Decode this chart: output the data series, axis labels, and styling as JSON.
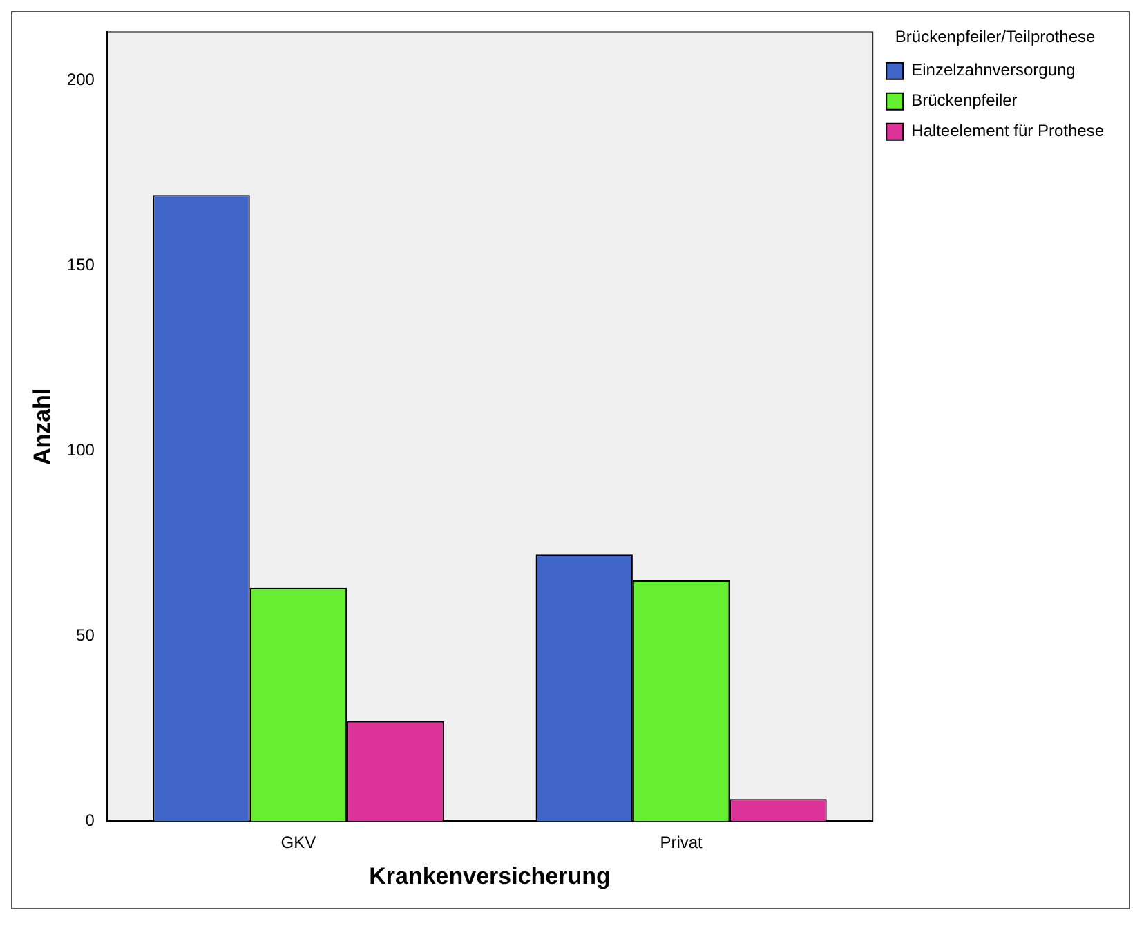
{
  "chart_data": {
    "type": "bar",
    "xlabel": "Krankenversicherung",
    "ylabel": "Anzahl",
    "legend_title": "Brückenpfeiler/Teilprothese",
    "categories": [
      "GKV",
      "Privat"
    ],
    "series": [
      {
        "name": "Einzelzahnversorgung",
        "color": "#3f66c8",
        "values": [
          169,
          72
        ]
      },
      {
        "name": "Brückenpfeiler",
        "color": "#66ee33",
        "values": [
          63,
          65
        ]
      },
      {
        "name": "Halteelement für Prothese",
        "color": "#dd3399",
        "values": [
          27,
          6
        ]
      }
    ],
    "ylim": [
      0,
      213
    ],
    "yticks": [
      0,
      50,
      100,
      150,
      200
    ],
    "grid": false,
    "legend": "top right"
  }
}
